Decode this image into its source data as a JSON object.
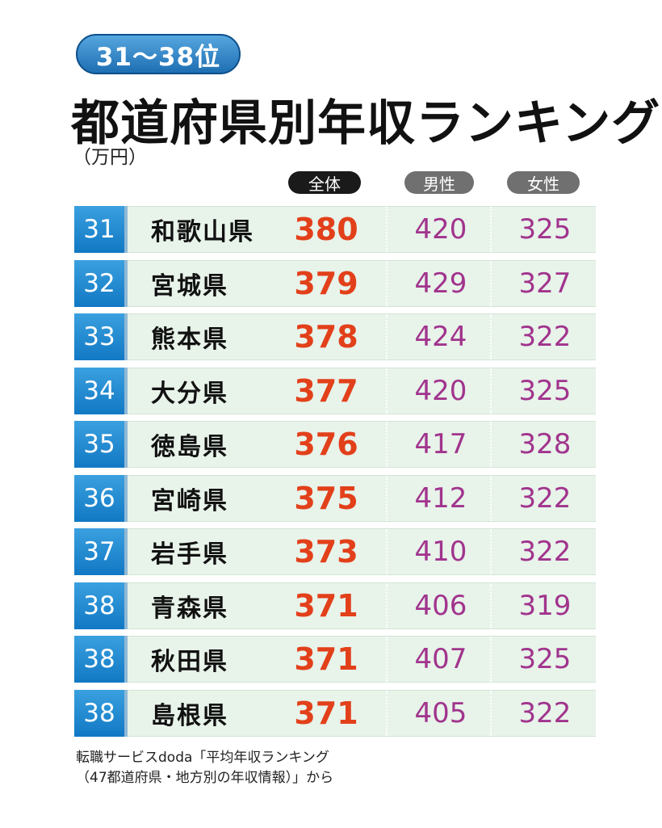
{
  "badge": "31～38位",
  "title": "都道府県別年収ランキング",
  "unit": "（万円）",
  "chart_data": {
    "type": "table",
    "columns": [
      "全体",
      "男性",
      "女性"
    ],
    "rows": [
      {
        "rank": "31",
        "prefecture": "和歌山県",
        "total": "380",
        "male": "420",
        "female": "325"
      },
      {
        "rank": "32",
        "prefecture": "宮城県",
        "total": "379",
        "male": "429",
        "female": "327"
      },
      {
        "rank": "33",
        "prefecture": "熊本県",
        "total": "378",
        "male": "424",
        "female": "322"
      },
      {
        "rank": "34",
        "prefecture": "大分県",
        "total": "377",
        "male": "420",
        "female": "325"
      },
      {
        "rank": "35",
        "prefecture": "徳島県",
        "total": "376",
        "male": "417",
        "female": "328"
      },
      {
        "rank": "36",
        "prefecture": "宮崎県",
        "total": "375",
        "male": "412",
        "female": "322"
      },
      {
        "rank": "37",
        "prefecture": "岩手県",
        "total": "373",
        "male": "410",
        "female": "322"
      },
      {
        "rank": "38",
        "prefecture": "青森県",
        "total": "371",
        "male": "406",
        "female": "319"
      },
      {
        "rank": "38",
        "prefecture": "秋田県",
        "total": "371",
        "male": "407",
        "female": "325"
      },
      {
        "rank": "38",
        "prefecture": "島根県",
        "total": "371",
        "male": "405",
        "female": "322"
      }
    ]
  },
  "source": {
    "line1": "転職サービスdoda「平均年収ランキング",
    "line2": "（47都道府県・地方別の年収情報）」から"
  },
  "colors": {
    "accent_blue": "#1178c4",
    "total_value": "#e2401a",
    "gender_value": "#a1348d",
    "row_background": "#e8f3ea"
  }
}
